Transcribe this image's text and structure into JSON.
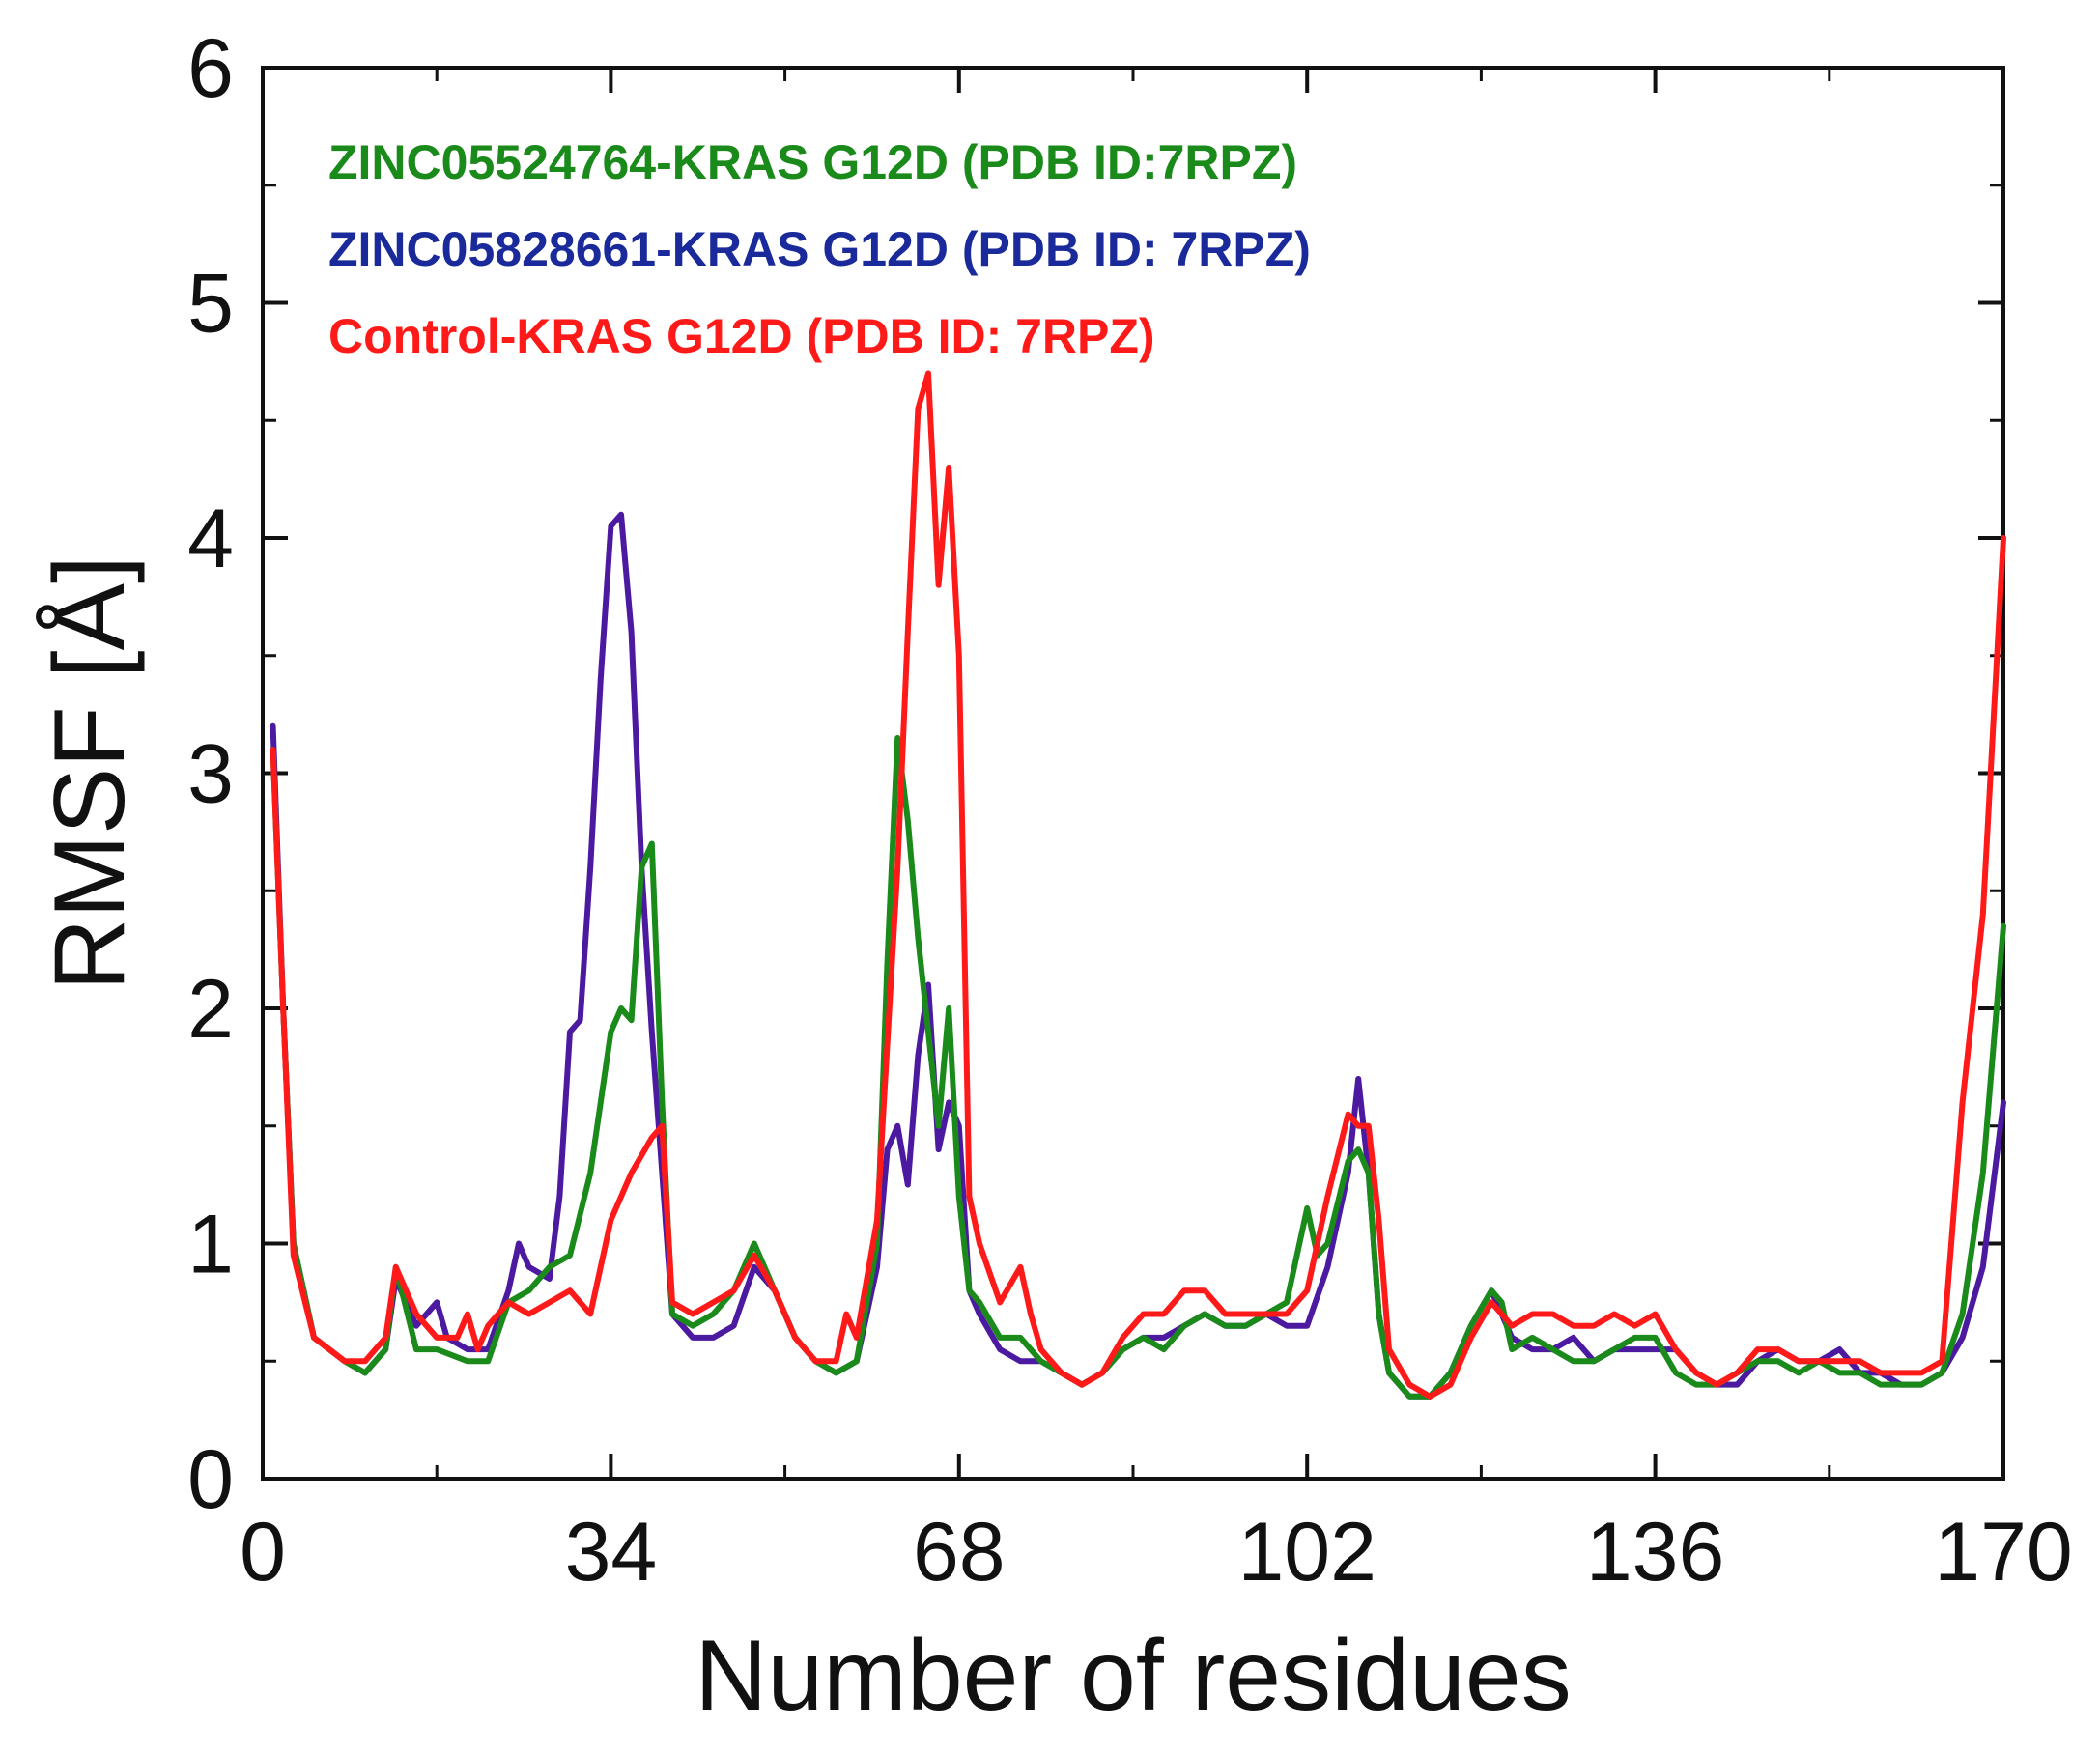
{
  "chart_data": {
    "type": "line",
    "title": "",
    "xlabel": "Number of residues",
    "ylabel": "RMSF [Å]",
    "xlim": [
      0,
      170
    ],
    "ylim": [
      0,
      6
    ],
    "xticks": [
      0,
      34,
      68,
      102,
      136,
      170
    ],
    "yticks": [
      0,
      1,
      2,
      3,
      4,
      5,
      6
    ],
    "grid": false,
    "legend_position": "top-left",
    "series": [
      {
        "name": "ZINC05524764-KRAS G12D (PDB ID:7RPZ)",
        "color": "#1a8a1a",
        "x": [
          1,
          2,
          3,
          5,
          8,
          10,
          12,
          13,
          15,
          17,
          20,
          22,
          24,
          26,
          28,
          30,
          32,
          34,
          35,
          36,
          37,
          38,
          39,
          40,
          42,
          44,
          46,
          48,
          50,
          52,
          54,
          56,
          58,
          60,
          61,
          62,
          63,
          64,
          65,
          66,
          67,
          68,
          69,
          70,
          72,
          74,
          76,
          78,
          80,
          82,
          84,
          86,
          88,
          90,
          92,
          94,
          96,
          98,
          100,
          102,
          103,
          104,
          106,
          107,
          108,
          109,
          110,
          112,
          114,
          116,
          118,
          120,
          121,
          122,
          124,
          126,
          128,
          130,
          132,
          134,
          136,
          138,
          140,
          142,
          144,
          146,
          148,
          150,
          152,
          154,
          156,
          158,
          160,
          162,
          164,
          166,
          168,
          170
        ],
        "y": [
          3.1,
          2.0,
          1.0,
          0.6,
          0.5,
          0.45,
          0.55,
          0.9,
          0.55,
          0.55,
          0.5,
          0.5,
          0.75,
          0.8,
          0.9,
          0.95,
          1.3,
          1.9,
          2.0,
          1.95,
          2.6,
          2.7,
          1.6,
          0.7,
          0.65,
          0.7,
          0.8,
          1.0,
          0.8,
          0.6,
          0.5,
          0.45,
          0.5,
          1.0,
          2.2,
          3.15,
          2.8,
          2.3,
          1.9,
          1.5,
          2.0,
          1.2,
          0.8,
          0.75,
          0.6,
          0.6,
          0.5,
          0.45,
          0.4,
          0.45,
          0.55,
          0.6,
          0.55,
          0.65,
          0.7,
          0.65,
          0.65,
          0.7,
          0.75,
          1.15,
          0.95,
          1.0,
          1.35,
          1.4,
          1.3,
          0.7,
          0.45,
          0.35,
          0.35,
          0.45,
          0.65,
          0.8,
          0.75,
          0.55,
          0.6,
          0.55,
          0.5,
          0.5,
          0.55,
          0.6,
          0.6,
          0.45,
          0.4,
          0.4,
          0.45,
          0.5,
          0.5,
          0.45,
          0.5,
          0.45,
          0.45,
          0.4,
          0.4,
          0.4,
          0.45,
          0.7,
          1.3,
          2.35
        ]
      },
      {
        "name": "ZINC05828661-KRAS G12D (PDB ID: 7RPZ)",
        "color": "#4b1aa0",
        "x": [
          1,
          2,
          3,
          5,
          8,
          10,
          12,
          13,
          15,
          17,
          18,
          20,
          22,
          24,
          25,
          26,
          28,
          29,
          30,
          31,
          32,
          33,
          34,
          35,
          36,
          37,
          38,
          40,
          42,
          44,
          46,
          48,
          50,
          52,
          54,
          56,
          58,
          60,
          61,
          62,
          63,
          64,
          65,
          66,
          67,
          68,
          69,
          70,
          72,
          74,
          76,
          78,
          80,
          82,
          84,
          86,
          88,
          90,
          92,
          94,
          96,
          98,
          100,
          102,
          104,
          106,
          107,
          108,
          109,
          110,
          112,
          114,
          116,
          118,
          120,
          122,
          124,
          126,
          128,
          130,
          132,
          134,
          136,
          138,
          140,
          142,
          144,
          146,
          148,
          150,
          152,
          154,
          156,
          158,
          160,
          162,
          164,
          166,
          168,
          170
        ],
        "y": [
          3.2,
          2.0,
          1.0,
          0.6,
          0.5,
          0.45,
          0.55,
          0.85,
          0.65,
          0.75,
          0.6,
          0.55,
          0.55,
          0.8,
          1.0,
          0.9,
          0.85,
          1.2,
          1.9,
          1.95,
          2.6,
          3.4,
          4.05,
          4.1,
          3.6,
          2.6,
          1.9,
          0.7,
          0.6,
          0.6,
          0.65,
          0.9,
          0.8,
          0.6,
          0.5,
          0.45,
          0.5,
          0.9,
          1.4,
          1.5,
          1.25,
          1.8,
          2.1,
          1.4,
          1.6,
          1.5,
          0.8,
          0.7,
          0.55,
          0.5,
          0.5,
          0.45,
          0.4,
          0.45,
          0.55,
          0.6,
          0.6,
          0.65,
          0.7,
          0.65,
          0.65,
          0.7,
          0.65,
          0.65,
          0.9,
          1.3,
          1.7,
          1.3,
          0.7,
          0.45,
          0.35,
          0.35,
          0.45,
          0.65,
          0.8,
          0.6,
          0.55,
          0.55,
          0.6,
          0.5,
          0.55,
          0.55,
          0.55,
          0.55,
          0.45,
          0.4,
          0.4,
          0.5,
          0.55,
          0.5,
          0.5,
          0.55,
          0.45,
          0.45,
          0.4,
          0.4,
          0.45,
          0.6,
          0.9,
          1.6
        ]
      },
      {
        "name": "Control-KRAS G12D (PDB ID: 7RPZ)",
        "color": "#ff1a1a",
        "x": [
          1,
          2,
          3,
          5,
          8,
          10,
          12,
          13,
          15,
          17,
          19,
          20,
          21,
          22,
          24,
          26,
          28,
          30,
          32,
          34,
          36,
          38,
          39,
          40,
          42,
          44,
          46,
          48,
          50,
          52,
          54,
          56,
          57,
          58,
          60,
          62,
          63,
          64,
          65,
          66,
          67,
          68,
          69,
          70,
          72,
          74,
          75,
          76,
          78,
          80,
          82,
          84,
          86,
          88,
          90,
          92,
          94,
          96,
          98,
          100,
          102,
          104,
          106,
          107,
          108,
          109,
          110,
          112,
          114,
          116,
          118,
          120,
          121,
          122,
          124,
          126,
          128,
          130,
          132,
          134,
          136,
          138,
          140,
          142,
          144,
          146,
          148,
          150,
          152,
          154,
          156,
          158,
          160,
          162,
          164,
          166,
          168,
          170
        ],
        "y": [
          3.1,
          2.0,
          0.95,
          0.6,
          0.5,
          0.5,
          0.6,
          0.9,
          0.7,
          0.6,
          0.6,
          0.7,
          0.55,
          0.65,
          0.75,
          0.7,
          0.75,
          0.8,
          0.7,
          1.1,
          1.3,
          1.45,
          1.5,
          0.75,
          0.7,
          0.75,
          0.8,
          0.95,
          0.8,
          0.6,
          0.5,
          0.5,
          0.7,
          0.6,
          1.1,
          2.6,
          3.6,
          4.55,
          4.7,
          3.8,
          4.3,
          3.5,
          1.2,
          1.0,
          0.75,
          0.9,
          0.7,
          0.55,
          0.45,
          0.4,
          0.45,
          0.6,
          0.7,
          0.7,
          0.8,
          0.8,
          0.7,
          0.7,
          0.7,
          0.7,
          0.8,
          1.2,
          1.55,
          1.5,
          1.5,
          1.1,
          0.55,
          0.4,
          0.35,
          0.4,
          0.6,
          0.75,
          0.7,
          0.65,
          0.7,
          0.7,
          0.65,
          0.65,
          0.7,
          0.65,
          0.7,
          0.55,
          0.45,
          0.4,
          0.45,
          0.55,
          0.55,
          0.5,
          0.5,
          0.5,
          0.5,
          0.45,
          0.45,
          0.45,
          0.5,
          1.6,
          2.4,
          4.0
        ]
      }
    ]
  }
}
